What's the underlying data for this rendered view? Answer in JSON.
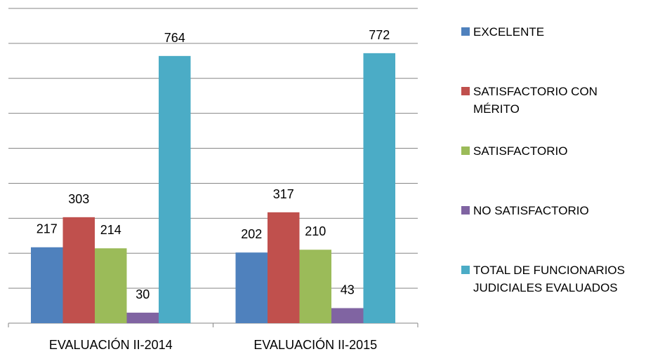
{
  "chart_data": {
    "type": "bar",
    "categories": [
      "EVALUACIÓN II-2014",
      "EVALUACIÓN II-2015"
    ],
    "series": [
      {
        "name": "EXCELENTE",
        "color": "#4f81bd",
        "values": [
          217,
          202
        ]
      },
      {
        "name": "SATISFACTORIO CON MÉRITO",
        "color": "#c0504d",
        "values": [
          303,
          317
        ]
      },
      {
        "name": "SATISFACTORIO",
        "color": "#9bbb59",
        "values": [
          214,
          210
        ]
      },
      {
        "name": "NO SATISFACTORIO",
        "color": "#8064a2",
        "values": [
          30,
          43
        ]
      },
      {
        "name": "TOTAL DE FUNCIONARIOS JUDICIALES EVALUADOS",
        "color": "#4bacc6",
        "values": [
          764,
          772
        ]
      }
    ],
    "ylim": [
      0,
      900
    ],
    "yticks": [
      0,
      100,
      200,
      300,
      400,
      500,
      600,
      700,
      800,
      900
    ],
    "grid": true,
    "legend": "right"
  }
}
